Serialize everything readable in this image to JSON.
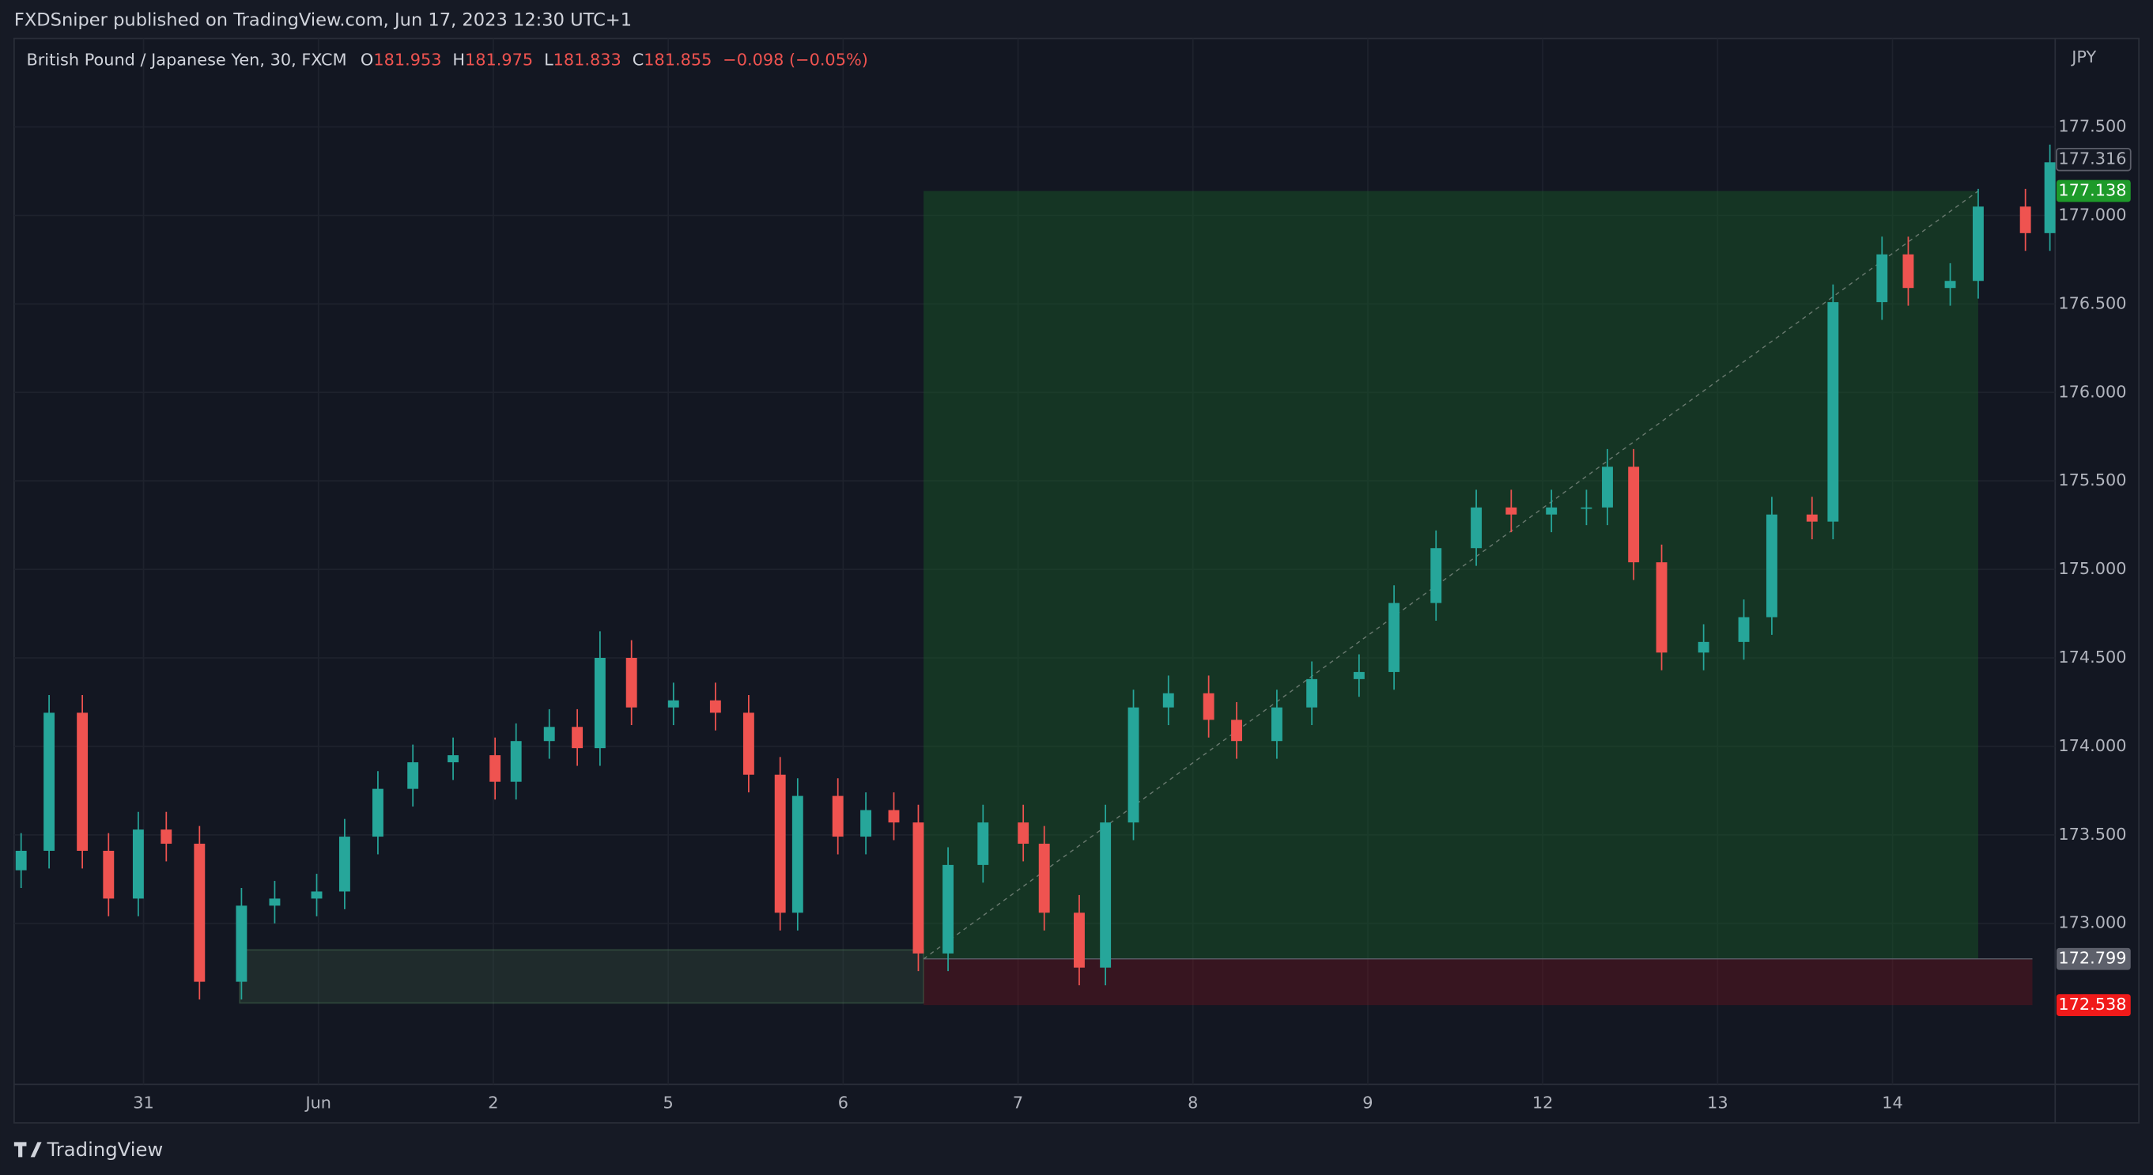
{
  "header": {
    "title": "FXDSniper published on TradingView.com, Jun 17, 2023 12:30 UTC+1"
  },
  "footer": {
    "brand": "TradingView"
  },
  "chart_data": {
    "type": "candlestick",
    "symbol": "British Pound / Japanese Yen, 30, FXCM",
    "legend": [
      {
        "key": "O",
        "value": "181.953"
      },
      {
        "key": "H",
        "value": "181.975"
      },
      {
        "key": "L",
        "value": "181.833"
      },
      {
        "key": "C",
        "value": "181.855"
      }
    ],
    "change": "−0.098 (−0.05%)",
    "currency": "JPY",
    "up_color": "#26a69a",
    "down_color": "#ef5350",
    "grid": true,
    "x": [
      -0.7,
      -0.54,
      -0.35,
      -0.2,
      -0.03,
      0.13,
      0.32,
      0.56,
      0.75,
      0.99,
      1.15,
      1.34,
      1.54,
      1.77,
      2.01,
      2.13,
      2.32,
      2.48,
      2.61,
      2.79,
      3.03,
      3.27,
      3.46,
      3.64,
      3.74,
      3.97,
      4.13,
      4.29,
      4.43,
      4.6,
      4.8,
      5.03,
      5.15,
      5.35,
      5.5,
      5.66,
      5.86,
      6.09,
      6.25,
      6.48,
      6.68,
      6.95,
      7.15,
      7.39,
      7.62,
      7.82,
      8.05,
      8.25,
      8.37,
      8.52,
      8.68,
      8.92,
      9.15,
      9.31,
      9.54,
      9.66,
      9.94,
      10.09,
      10.33,
      10.49,
      10.76,
      10.9
    ],
    "open": [
      173.3,
      173.41,
      174.19,
      173.41,
      173.14,
      173.53,
      173.45,
      172.67,
      173.1,
      173.14,
      173.18,
      173.49,
      173.76,
      173.91,
      173.95,
      173.8,
      174.03,
      174.11,
      173.99,
      174.5,
      174.22,
      174.26,
      174.19,
      173.84,
      173.06,
      173.72,
      173.49,
      173.64,
      173.57,
      172.83,
      173.33,
      173.57,
      173.45,
      173.06,
      172.75,
      173.57,
      174.22,
      174.3,
      174.15,
      174.03,
      174.22,
      174.38,
      174.42,
      174.81,
      175.12,
      175.35,
      175.31,
      175.35,
      175.35,
      175.58,
      175.04,
      174.53,
      174.59,
      174.73,
      175.31,
      175.27,
      176.51,
      176.78,
      176.59,
      176.63,
      177.05,
      176.9
    ],
    "high": [
      173.51,
      174.29,
      174.29,
      173.51,
      173.63,
      173.63,
      173.55,
      173.2,
      173.24,
      173.28,
      173.59,
      173.86,
      174.01,
      174.05,
      174.05,
      174.13,
      174.21,
      174.21,
      174.65,
      174.6,
      174.36,
      174.36,
      174.29,
      173.94,
      173.82,
      173.82,
      173.74,
      173.74,
      173.67,
      173.43,
      173.67,
      173.67,
      173.55,
      173.16,
      173.67,
      174.32,
      174.4,
      174.4,
      174.25,
      174.32,
      174.48,
      174.52,
      174.91,
      175.22,
      175.45,
      175.45,
      175.45,
      175.45,
      175.68,
      175.68,
      175.14,
      174.69,
      174.83,
      175.41,
      175.41,
      176.61,
      176.88,
      176.88,
      176.73,
      177.15,
      177.15,
      177.4
    ],
    "low": [
      173.2,
      173.31,
      173.31,
      173.04,
      173.04,
      173.35,
      172.57,
      172.57,
      173.0,
      173.04,
      173.08,
      173.39,
      173.66,
      173.81,
      173.7,
      173.7,
      173.93,
      173.89,
      173.89,
      174.12,
      174.12,
      174.09,
      173.74,
      172.96,
      172.96,
      173.39,
      173.39,
      173.47,
      172.73,
      172.73,
      173.23,
      173.35,
      172.96,
      172.65,
      172.65,
      173.47,
      174.12,
      174.05,
      173.93,
      173.93,
      174.12,
      174.28,
      174.32,
      174.71,
      175.02,
      175.21,
      175.21,
      175.25,
      175.25,
      174.94,
      174.43,
      174.43,
      174.49,
      174.63,
      175.17,
      175.17,
      176.41,
      176.49,
      176.49,
      176.53,
      176.8,
      176.8
    ],
    "close": [
      173.41,
      174.19,
      173.41,
      173.14,
      173.53,
      173.45,
      172.67,
      173.1,
      173.14,
      173.18,
      173.49,
      173.76,
      173.91,
      173.95,
      173.8,
      174.03,
      174.11,
      173.99,
      174.5,
      174.22,
      174.26,
      174.19,
      173.84,
      173.06,
      173.72,
      173.49,
      173.64,
      173.57,
      172.83,
      173.33,
      173.57,
      173.45,
      173.06,
      172.75,
      173.57,
      174.22,
      174.3,
      174.15,
      174.03,
      174.22,
      174.38,
      174.42,
      174.81,
      175.12,
      175.35,
      175.31,
      175.35,
      175.35,
      175.58,
      175.04,
      174.53,
      174.59,
      174.73,
      175.31,
      175.27,
      176.51,
      176.78,
      176.59,
      176.63,
      177.05,
      176.9,
      177.3
    ],
    "xlim": [
      -0.74,
      10.93
    ],
    "xticks": [
      {
        "value": 0,
        "label": "31"
      },
      {
        "value": 1,
        "label": "Jun"
      },
      {
        "value": 2,
        "label": "2"
      },
      {
        "value": 3,
        "label": "5"
      },
      {
        "value": 4,
        "label": "6"
      },
      {
        "value": 5,
        "label": "7"
      },
      {
        "value": 6,
        "label": "8"
      },
      {
        "value": 7,
        "label": "9"
      },
      {
        "value": 8,
        "label": "12"
      },
      {
        "value": 9,
        "label": "13"
      },
      {
        "value": 10,
        "label": "14"
      }
    ],
    "ylim": [
      172.09,
      178.0
    ],
    "yticks": [
      {
        "value": 173,
        "label": "173.000"
      },
      {
        "value": 173.5,
        "label": "173.500"
      },
      {
        "value": 174,
        "label": "174.000"
      },
      {
        "value": 174.5,
        "label": "174.500"
      },
      {
        "value": 175,
        "label": "175.000"
      },
      {
        "value": 175.5,
        "label": "175.500"
      },
      {
        "value": 176,
        "label": "176.000"
      },
      {
        "value": 176.5,
        "label": "176.500"
      },
      {
        "value": 177,
        "label": "177.000"
      },
      {
        "value": 177.5,
        "label": "177.500"
      }
    ],
    "position": {
      "x_start": 4.46,
      "x_profit_end": 10.49,
      "x_stop_end": 10.8,
      "target": 177.138,
      "entry": 172.799,
      "stop": 172.538
    },
    "zone": {
      "x_start": 0.55,
      "x_end": 4.46,
      "top": 172.85,
      "bottom": 172.55
    },
    "price_labels": [
      {
        "value": 177.316,
        "label": "177.316",
        "color": "#161a25"
      },
      {
        "value": 177.138,
        "label": "177.138",
        "color": "#1e9a2a"
      },
      {
        "value": 172.799,
        "label": "172.799",
        "color": "#5d606b"
      },
      {
        "value": 172.538,
        "label": "172.538",
        "color": "#f01a1a"
      }
    ]
  }
}
